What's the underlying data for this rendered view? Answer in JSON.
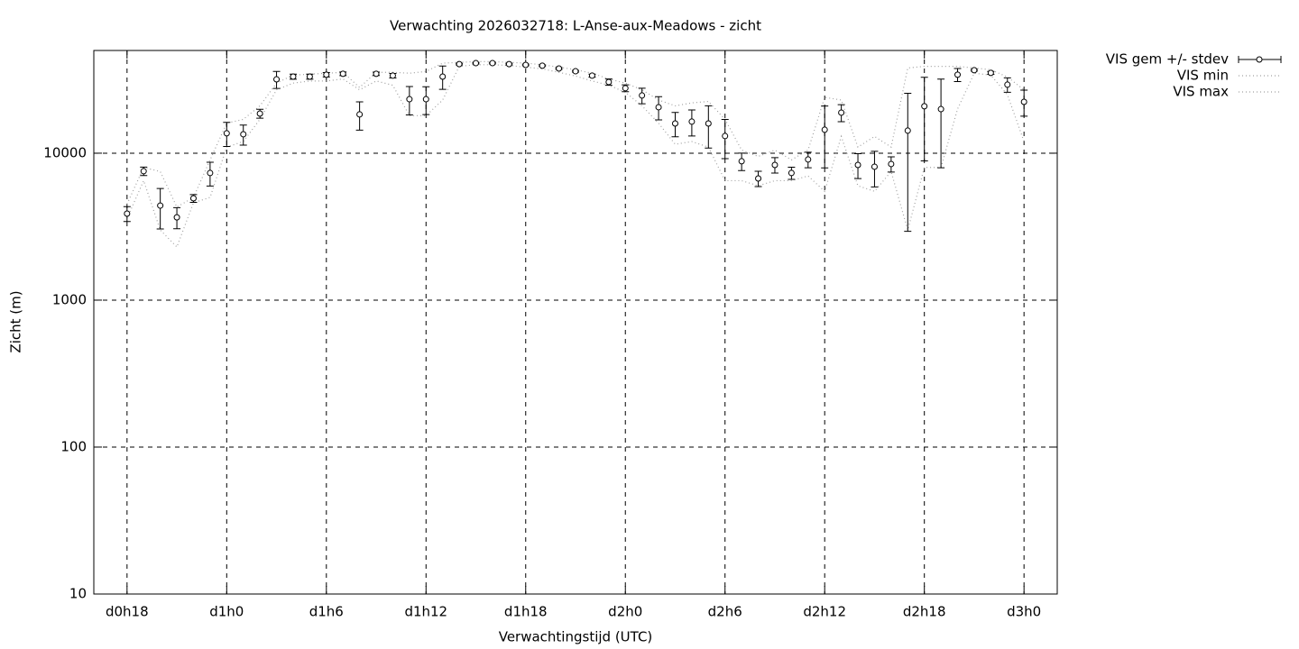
{
  "chart_data": {
    "type": "errorbar_log",
    "title": "Verwachting 2026032718: L-Anse-aux-Meadows - zicht",
    "xlabel": "Verwachtingstijd (UTC)",
    "ylabel": "Zicht (m)",
    "log_y": true,
    "grid": true,
    "legend": "outside-top-right",
    "xlim": [
      16,
      74
    ],
    "xticks": [
      {
        "value": 18,
        "label": "d0h18"
      },
      {
        "value": 24,
        "label": "d1h0"
      },
      {
        "value": 30,
        "label": "d1h6"
      },
      {
        "value": 36,
        "label": "d1h12"
      },
      {
        "value": 42,
        "label": "d1h18"
      },
      {
        "value": 48,
        "label": "d2h0"
      },
      {
        "value": 54,
        "label": "d2h6"
      },
      {
        "value": 60,
        "label": "d2h12"
      },
      {
        "value": 66,
        "label": "d2h18"
      },
      {
        "value": 72,
        "label": "d3h0"
      }
    ],
    "ylim": [
      10,
      50000
    ],
    "yticks": [
      10,
      100,
      1000,
      10000
    ],
    "x": [
      18,
      19,
      20,
      21,
      22,
      23,
      24,
      25,
      26,
      27,
      28,
      29,
      30,
      31,
      32,
      33,
      34,
      35,
      36,
      37,
      38,
      39,
      40,
      41,
      42,
      43,
      44,
      45,
      46,
      47,
      48,
      49,
      50,
      51,
      52,
      53,
      54,
      55,
      56,
      57,
      58,
      59,
      60,
      61,
      62,
      63,
      64,
      65,
      66,
      67,
      68,
      69,
      70,
      71,
      72
    ],
    "series": [
      {
        "name": "VIS gem +/- stdev",
        "color": "#000000",
        "values": [
          3880,
          7540,
          4400,
          3660,
          4930,
          7330,
          13650,
          13450,
          18600,
          31800,
          33200,
          33200,
          34200,
          34700,
          18360,
          34700,
          33700,
          23300,
          23300,
          33200,
          40400,
          41000,
          41000,
          40400,
          39900,
          39400,
          37700,
          36100,
          33700,
          30500,
          27700,
          24700,
          20550,
          15930,
          16400,
          15930,
          13080,
          8810,
          6730,
          8320,
          7330,
          9060,
          14440,
          18880,
          8320,
          8090,
          8440,
          14240,
          20860,
          19950,
          34200,
          36700,
          35200,
          29260,
          22350
        ],
        "errors": [
          450,
          500,
          1350,
          600,
          300,
          1350,
          2550,
          2100,
          1300,
          4200,
          1300,
          1300,
          1200,
          1000,
          4000,
          900,
          1200,
          5100,
          5000,
          6000,
          500,
          500,
          500,
          500,
          500,
          500,
          500,
          500,
          800,
          1500,
          1500,
          3000,
          3700,
          3000,
          3300,
          5100,
          3900,
          1200,
          800,
          1000,
          700,
          1100,
          6500,
          2500,
          1600,
          2200,
          1000,
          11300,
          12000,
          12000,
          3500,
          500,
          800,
          3300,
          4500
        ]
      },
      {
        "name": "VIS min",
        "color": "#a0a0a0",
        "values": [
          3600,
          6500,
          3000,
          2300,
          4600,
          5000,
          11000,
          12000,
          17000,
          27000,
          30000,
          31000,
          31000,
          32000,
          27000,
          31000,
          29000,
          18000,
          18000,
          23000,
          39000,
          40000,
          40000,
          39500,
          38500,
          37500,
          35500,
          33500,
          31000,
          29000,
          26000,
          21000,
          16000,
          11500,
          12000,
          11000,
          6500,
          6500,
          6000,
          6500,
          6500,
          7000,
          5500,
          13000,
          6000,
          5500,
          7500,
          3000,
          8000,
          8000,
          20000,
          35000,
          34000,
          25000,
          12000
        ]
      },
      {
        "name": "VIS max",
        "color": "#a0a0a0",
        "values": [
          4500,
          8000,
          7500,
          4300,
          5000,
          9000,
          16000,
          17000,
          21000,
          30000,
          34000,
          34500,
          35000,
          35500,
          28000,
          35500,
          35500,
          35000,
          36000,
          41000,
          41500,
          42000,
          42000,
          41500,
          41000,
          40000,
          38500,
          37000,
          35000,
          32000,
          30000,
          27000,
          23000,
          21000,
          22000,
          22500,
          17000,
          10500,
          9500,
          10500,
          9000,
          10500,
          24000,
          23000,
          11000,
          13000,
          11000,
          38000,
          39000,
          39000,
          39000,
          38000,
          37000,
          33000,
          27000
        ]
      }
    ]
  }
}
